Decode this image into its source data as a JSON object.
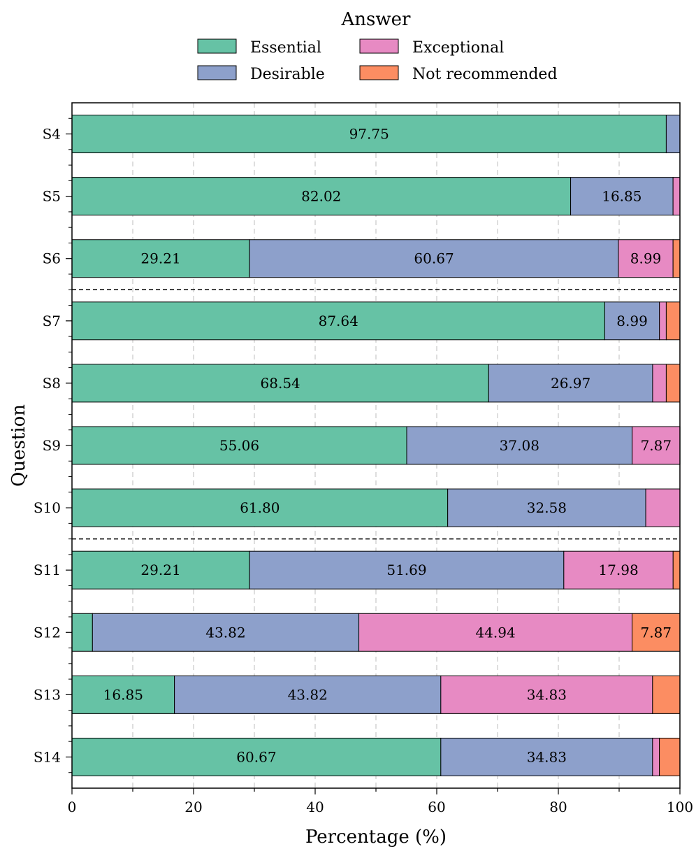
{
  "chart_data": {
    "type": "bar",
    "orientation": "horizontal",
    "stacked": true,
    "xlabel": "Percentage (%)",
    "ylabel": "Question",
    "xlim": [
      0,
      100
    ],
    "xticks": [
      0,
      20,
      40,
      60,
      80,
      100
    ],
    "legend": {
      "title": "Answer",
      "placement": "top-center",
      "entries": [
        "Essential",
        "Exceptional",
        "Desirable",
        "Not recommended"
      ]
    },
    "grid": "vertical dashed every 10",
    "separators_after": [
      "S6",
      "S10"
    ],
    "categories": [
      "S4",
      "S5",
      "S6",
      "S7",
      "S8",
      "S9",
      "S10",
      "S11",
      "S12",
      "S13",
      "S14"
    ],
    "series": [
      {
        "name": "Essential",
        "color": "#66c2a5",
        "values": [
          97.75,
          82.02,
          29.21,
          87.64,
          68.54,
          55.06,
          61.8,
          29.21,
          3.37,
          16.85,
          60.67
        ],
        "labels": [
          "97.75",
          "82.02",
          "29.21",
          "87.64",
          "68.54",
          "55.06",
          "61.80",
          "29.21",
          "",
          "16.85",
          "60.67"
        ]
      },
      {
        "name": "Desirable",
        "color": "#8da0cb",
        "values": [
          2.25,
          16.85,
          60.67,
          8.99,
          26.97,
          37.08,
          32.58,
          51.69,
          43.82,
          43.82,
          34.83
        ],
        "labels": [
          "",
          "16.85",
          "60.67",
          "8.99",
          "26.97",
          "37.08",
          "32.58",
          "51.69",
          "43.82",
          "43.82",
          "34.83"
        ]
      },
      {
        "name": "Exceptional",
        "color": "#e78ac3",
        "values": [
          0.0,
          1.13,
          8.99,
          1.12,
          2.24,
          7.87,
          5.62,
          17.98,
          44.94,
          34.83,
          1.12
        ],
        "labels": [
          "",
          "",
          "8.99",
          "",
          "",
          "7.87",
          "",
          "17.98",
          "44.94",
          "34.83",
          ""
        ]
      },
      {
        "name": "Not recommended",
        "color": "#fc8d62",
        "values": [
          0.0,
          0.0,
          1.13,
          2.25,
          2.25,
          0.0,
          0.0,
          1.12,
          7.87,
          4.5,
          3.38
        ],
        "labels": [
          "",
          "",
          "",
          "",
          "",
          "",
          "",
          "",
          "7.87",
          "",
          ""
        ]
      }
    ]
  }
}
